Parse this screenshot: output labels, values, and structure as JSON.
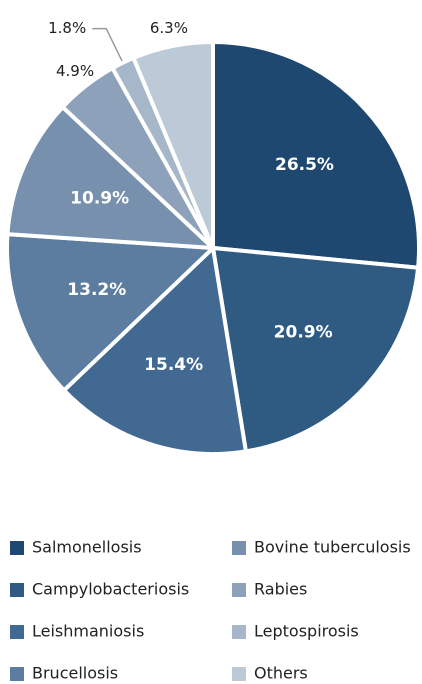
{
  "chart_data": {
    "type": "pie",
    "categories": [
      "Salmonellosis",
      "Campylobacteriosis",
      "Leishmaniosis",
      "Brucellosis",
      "Bovine tuberculosis",
      "Rabies",
      "Leptospirosis",
      "Others"
    ],
    "values": [
      26.5,
      20.9,
      15.4,
      13.2,
      10.9,
      4.9,
      1.8,
      6.3
    ],
    "value_labels": [
      "26.5%",
      "20.9%",
      "15.4%",
      "13.2%",
      "10.9%",
      "4.9%",
      "1.8%",
      "6.3%"
    ],
    "colors": [
      "#1f4870",
      "#2f5a81",
      "#426991",
      "#5c7d9f",
      "#7790ad",
      "#8da2ba",
      "#a5b7c9",
      "#bccad8"
    ],
    "legend": "bottom"
  }
}
